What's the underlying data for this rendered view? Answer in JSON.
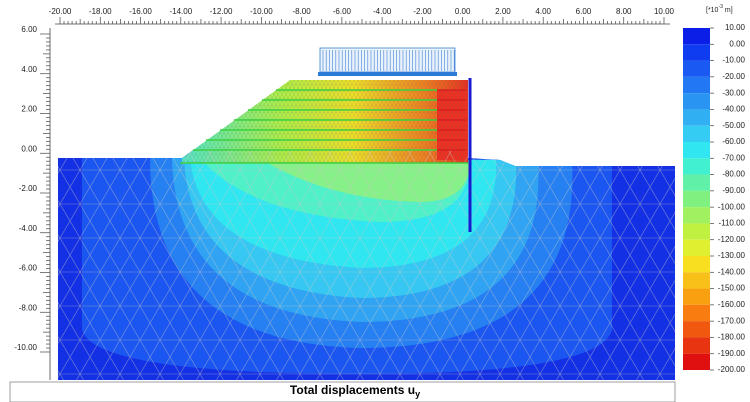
{
  "ruler_x": {
    "ticks": [
      {
        "value": -20,
        "label": "-20.00"
      },
      {
        "value": -18,
        "label": "-18.00"
      },
      {
        "value": -16,
        "label": "-16.00"
      },
      {
        "value": -14,
        "label": "-14.00"
      },
      {
        "value": -12,
        "label": "-12.00"
      },
      {
        "value": -10,
        "label": "-10.00"
      },
      {
        "value": -8,
        "label": "-8.00"
      },
      {
        "value": -6,
        "label": "-6.00"
      },
      {
        "value": -4,
        "label": "-4.00"
      },
      {
        "value": -2,
        "label": "-2.00"
      },
      {
        "value": 0,
        "label": "0.00"
      },
      {
        "value": 2,
        "label": "2.00"
      },
      {
        "value": 4,
        "label": "4.00"
      },
      {
        "value": 6,
        "label": "6.00"
      },
      {
        "value": 8,
        "label": "8.00"
      },
      {
        "value": 10,
        "label": "10.00"
      }
    ]
  },
  "ruler_y": {
    "ticks": [
      {
        "value": 6,
        "label": "6.00"
      },
      {
        "value": 4,
        "label": "4.00"
      },
      {
        "value": 2,
        "label": "2.00"
      },
      {
        "value": 0,
        "label": "0.00"
      },
      {
        "value": -2,
        "label": "-2.00"
      },
      {
        "value": -4,
        "label": "-4.00"
      },
      {
        "value": -6,
        "label": "-6.00"
      },
      {
        "value": -8,
        "label": "-8.00"
      },
      {
        "value": -10,
        "label": "-10.00"
      }
    ]
  },
  "legend": {
    "unit": {
      "base": "[*10",
      "exp": "-3",
      "rest": " m]"
    },
    "ticks": [
      {
        "value": 10,
        "label": "10.00"
      },
      {
        "value": 0,
        "label": "0.00"
      },
      {
        "value": -10,
        "label": "-10.00"
      },
      {
        "value": -20,
        "label": "-20.00"
      },
      {
        "value": -30,
        "label": "-30.00"
      },
      {
        "value": -40,
        "label": "-40.00"
      },
      {
        "value": -50,
        "label": "-50.00"
      },
      {
        "value": -60,
        "label": "-60.00"
      },
      {
        "value": -70,
        "label": "-70.00"
      },
      {
        "value": -80,
        "label": "-80.00"
      },
      {
        "value": -90,
        "label": "-90.00"
      },
      {
        "value": -100,
        "label": "-100.00"
      },
      {
        "value": -110,
        "label": "-110.00"
      },
      {
        "value": -120,
        "label": "-120.00"
      },
      {
        "value": -130,
        "label": "-130.00"
      },
      {
        "value": -140,
        "label": "-140.00"
      },
      {
        "value": -150,
        "label": "-150.00"
      },
      {
        "value": -160,
        "label": "-160.00"
      },
      {
        "value": -170,
        "label": "-170.00"
      },
      {
        "value": -180,
        "label": "-180.00"
      },
      {
        "value": -190,
        "label": "-190.00"
      },
      {
        "value": -200,
        "label": "-200.00"
      }
    ],
    "colors": [
      "#0a1ee8",
      "#0f3cf0",
      "#1a5af2",
      "#2278f2",
      "#2a94f2",
      "#30b0f2",
      "#34ccf2",
      "#30e6f0",
      "#40f0d0",
      "#60f0a8",
      "#80f080",
      "#a0f060",
      "#c0f040",
      "#e0f030",
      "#f8e020",
      "#f8c018",
      "#f8a010",
      "#f87c10",
      "#f05810",
      "#e83410",
      "#e01010"
    ]
  },
  "title": {
    "text": "Total displacements u",
    "sub": "y"
  }
}
